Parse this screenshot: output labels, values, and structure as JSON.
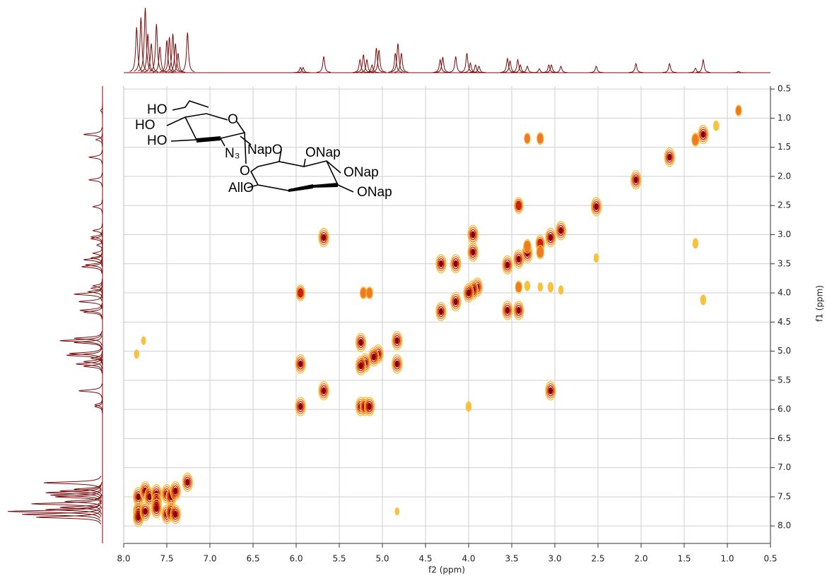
{
  "chart_data": {
    "type": "contour",
    "xlabel": "f2 (ppm)",
    "ylabel": "f1 (ppm)",
    "xlim": [
      8.0,
      0.5
    ],
    "ylim": [
      8.3,
      0.45
    ],
    "xticks": [
      {
        "value": 8,
        "label": "8.0"
      },
      7.5,
      {
        "value": 7,
        "label": "7.0"
      },
      6.5,
      {
        "value": 6,
        "label": "6.0"
      },
      5.5,
      {
        "value": 5,
        "label": "5.0"
      },
      4.5,
      {
        "value": 4,
        "label": "4.0"
      },
      3.5,
      {
        "value": 3,
        "label": "3.0"
      },
      2.5,
      {
        "value": 2,
        "label": "2.0"
      },
      1.5,
      {
        "value": 1,
        "label": "1.0"
      },
      0.5
    ],
    "yticks": [
      0.5,
      {
        "value": 1,
        "label": "1.0"
      },
      1.5,
      {
        "value": 2,
        "label": "2.0"
      },
      2.5,
      {
        "value": 3,
        "label": "3.0"
      },
      3.5,
      {
        "value": 4,
        "label": "4.0"
      },
      4.5,
      {
        "value": 5,
        "label": "5.0"
      },
      5.5,
      {
        "value": 6,
        "label": "6.0"
      },
      6.5,
      {
        "value": 7,
        "label": "7.0"
      },
      7.5,
      {
        "value": 8,
        "label": "8.0"
      }
    ],
    "grid": true,
    "colors": [
      "#f9c13c",
      "#ee7a22",
      "#c8210f",
      "#8b0000"
    ],
    "trace_color": "#7a0a0a",
    "peaks": {
      "x": [
        0.87,
        1.13,
        1.28,
        1.37,
        1.67,
        2.06,
        2.52,
        2.93,
        3.05,
        3.32,
        3.42,
        3.55,
        3.9,
        3.95,
        4.0,
        4.15,
        4.32,
        4.83,
        5.05,
        5.1,
        5.2,
        5.25,
        5.68,
        5.95,
        5.68,
        3.05,
        5.95,
        5.95,
        5.25,
        5.2,
        5.15,
        5.22,
        5.15,
        4.0,
        5.25,
        4.83,
        4.32,
        4.15,
        3.95,
        3.95,
        3.55,
        3.42,
        3.42,
        3.42,
        3.32,
        3.32,
        3.32,
        3.17,
        3.17,
        3.17,
        3.17,
        3.05,
        2.93,
        2.52,
        1.37,
        1.28,
        7.85,
        7.77,
        4.83,
        7.83,
        7.83,
        7.83,
        7.75,
        7.75,
        7.7,
        7.62,
        7.62,
        7.62,
        7.5,
        7.5,
        7.45,
        7.45,
        7.4,
        7.4,
        7.26
      ],
      "y": [
        0.87,
        1.13,
        1.28,
        1.37,
        1.67,
        2.06,
        2.52,
        2.93,
        3.05,
        3.32,
        3.42,
        3.52,
        3.9,
        3.95,
        4.0,
        4.15,
        4.32,
        4.82,
        5.05,
        5.1,
        5.2,
        5.25,
        5.68,
        5.95,
        3.05,
        5.68,
        4.0,
        5.22,
        5.95,
        5.95,
        5.95,
        4.0,
        4.0,
        5.95,
        4.85,
        5.22,
        3.5,
        3.5,
        3.0,
        3.3,
        4.3,
        4.3,
        2.5,
        3.9,
        1.35,
        3.2,
        3.88,
        1.35,
        3.15,
        3.3,
        3.9,
        3.9,
        3.95,
        3.4,
        3.15,
        4.12,
        5.05,
        4.82,
        7.75,
        7.5,
        7.75,
        7.85,
        7.4,
        7.75,
        7.5,
        7.45,
        7.6,
        7.7,
        7.45,
        7.8,
        7.5,
        7.75,
        7.4,
        7.8,
        7.25
      ],
      "values": [
        0.4,
        0.3,
        1,
        0.6,
        1,
        1,
        1,
        1,
        1,
        1,
        1,
        1,
        1,
        1,
        1,
        1,
        1,
        1,
        1,
        1,
        1,
        1,
        1,
        1,
        1,
        1,
        0.8,
        1,
        1,
        1,
        1,
        0.5,
        0.5,
        0.3,
        1,
        1,
        1,
        1,
        1,
        1,
        1,
        1,
        0.8,
        0.5,
        0.4,
        0.6,
        0.3,
        0.5,
        0.8,
        0.6,
        0.2,
        0.3,
        0.2,
        0.2,
        0.3,
        0.3,
        0.2,
        0.15,
        0.1,
        1,
        1,
        1,
        1,
        1,
        1,
        1,
        1,
        1,
        1,
        1,
        1,
        1,
        1,
        1,
        1
      ]
    },
    "trace": {
      "x": [
        7.85,
        7.8,
        7.75,
        7.72,
        7.68,
        7.62,
        7.58,
        7.5,
        7.47,
        7.43,
        7.4,
        7.37,
        7.26,
        5.95,
        5.92,
        5.68,
        5.26,
        5.22,
        5.18,
        5.12,
        5.07,
        5.04,
        4.85,
        4.82,
        4.78,
        4.33,
        4.3,
        4.15,
        4.02,
        3.98,
        3.92,
        3.88,
        3.55,
        3.52,
        3.43,
        3.4,
        3.32,
        3.18,
        3.07,
        3.04,
        2.93,
        2.52,
        2.06,
        1.67,
        1.37,
        1.28,
        0.87
      ],
      "values": [
        0.7,
        0.85,
        1,
        0.6,
        0.45,
        0.75,
        0.4,
        0.5,
        0.55,
        0.6,
        0.45,
        0.3,
        0.62,
        0.08,
        0.08,
        0.25,
        0.2,
        0.28,
        0.2,
        0.12,
        0.38,
        0.35,
        0.3,
        0.45,
        0.3,
        0.2,
        0.24,
        0.25,
        0.3,
        0.15,
        0.12,
        0.1,
        0.22,
        0.18,
        0.2,
        0.12,
        0.1,
        0.06,
        0.12,
        0.12,
        0.1,
        0.1,
        0.14,
        0.14,
        0.07,
        0.2,
        0.02
      ]
    }
  },
  "structure": {
    "labels": [
      "HO",
      "HO",
      "HO",
      "O",
      "N₃",
      "NapO",
      "ONap",
      "O",
      "ONap",
      "AllO",
      "ONap"
    ]
  }
}
